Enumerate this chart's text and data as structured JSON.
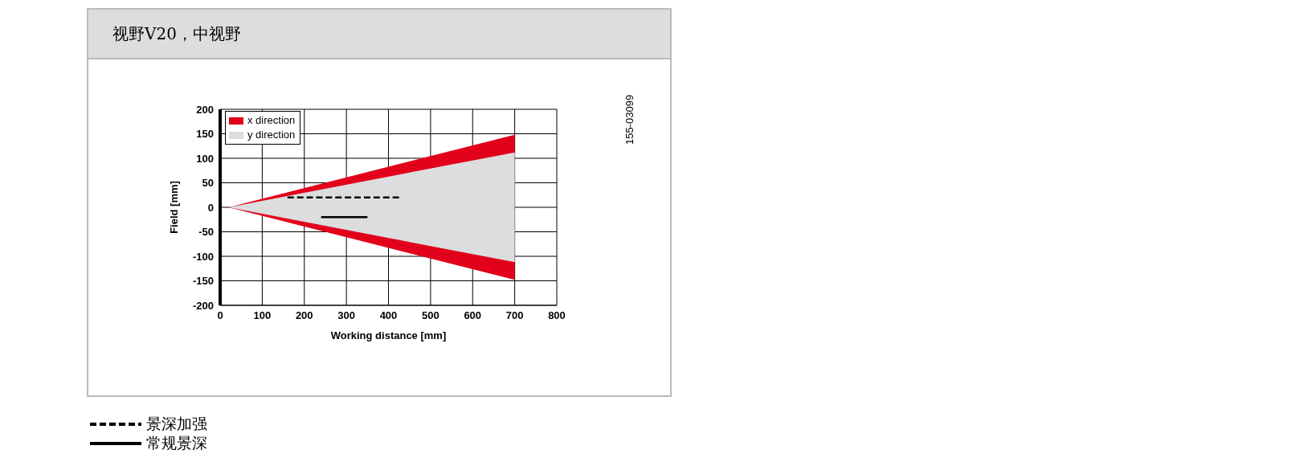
{
  "chart_data": {
    "type": "area",
    "title": "视野V20，中视野",
    "xlabel": "Working distance [mm]",
    "ylabel": "Field [mm]",
    "annotations": [
      "155-03099"
    ],
    "xlim": [
      0,
      800
    ],
    "xticks": [
      0,
      100,
      200,
      300,
      400,
      500,
      600,
      700,
      800
    ],
    "ylim": [
      -200,
      200
    ],
    "yticks": [
      -200,
      -150,
      -100,
      -50,
      0,
      50,
      100,
      150,
      200
    ],
    "grid": true,
    "legend": "bottom left",
    "series": [
      {
        "name": "x direction",
        "color": "#e2001a",
        "x": [
          20,
          700
        ],
        "values": [
          0,
          148
        ]
      },
      {
        "color": "#e2001b",
        "x": [
          20,
          700
        ],
        "values": [
          0,
          -148
        ]
      },
      {
        "name": "y direction",
        "color": "#dcdddd",
        "x": [
          20,
          700
        ],
        "values": [
          0,
          112
        ]
      },
      {
        "color": "#dcddde",
        "x": [
          20,
          700
        ],
        "values": [
          0,
          -112
        ]
      },
      {
        "name": "景深加强",
        "type": "line",
        "color": "#000000",
        "line_style": "dashed",
        "x": [
          160,
          425
        ],
        "values": [
          20,
          20
        ]
      },
      {
        "name": "常规景深",
        "type": "line",
        "color": "#000000",
        "line_style": "solid",
        "x": [
          240,
          350
        ],
        "values": [
          -20,
          -20
        ]
      }
    ]
  }
}
